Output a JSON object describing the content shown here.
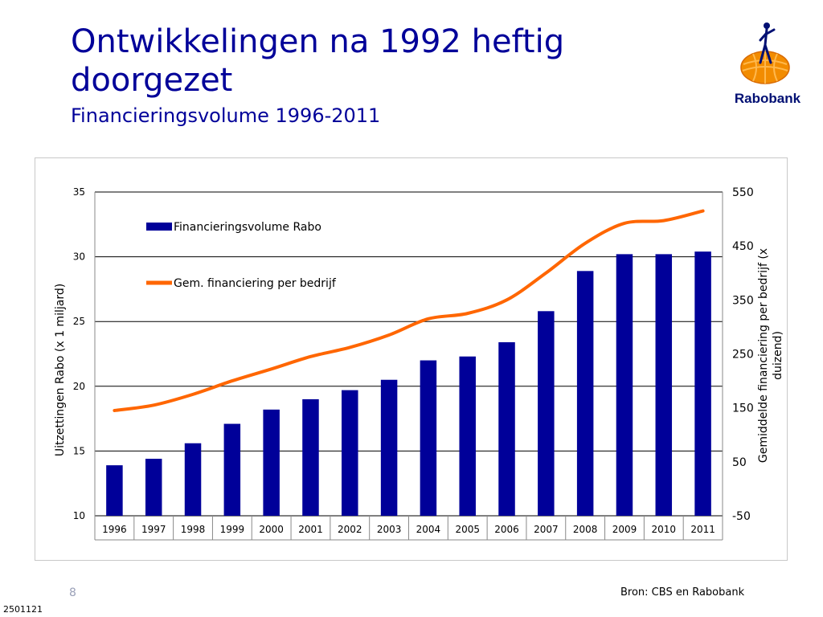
{
  "slide": {
    "title": "Ontwikkelingen na 1992 heftig doorgezet",
    "subtitle": "Financieringsvolume 1996-2011",
    "page_number": "8",
    "source": "Bron: CBS en Rabobank",
    "doc_id": "2501121"
  },
  "logo": {
    "text": "Rabobank",
    "icon": "rabobank-logo",
    "colors": {
      "orange": "#f28c00",
      "blue": "#000f73"
    }
  },
  "colors": {
    "bar": "#000099",
    "line": "#ff6600",
    "title": "#000099"
  },
  "chart_data": {
    "type": "bar",
    "categories": [
      "1996",
      "1997",
      "1998",
      "1999",
      "2000",
      "2001",
      "2002",
      "2003",
      "2004",
      "2005",
      "2006",
      "2007",
      "2008",
      "2009",
      "2010",
      "2011"
    ],
    "series": [
      {
        "name": "Financieringsvolume Rabo",
        "type": "bar",
        "axis": "left",
        "values": [
          13.9,
          14.4,
          15.6,
          17.1,
          18.2,
          19.0,
          19.7,
          20.5,
          22.0,
          22.3,
          23.4,
          25.8,
          28.9,
          30.2,
          30.2,
          30.4
        ]
      },
      {
        "name": "Gem. financiering per bedrijf",
        "type": "line",
        "axis": "right",
        "values": [
          145,
          155,
          175,
          200,
          222,
          245,
          262,
          285,
          315,
          325,
          350,
          400,
          455,
          492,
          497,
          515
        ]
      }
    ],
    "ylabel": "Uitzettingen Rabo (x 1 miljard)",
    "y2label": "Gemiddelde financiering per bedrijf (x duizend)",
    "ylim": [
      10,
      35
    ],
    "y2lim": [
      -50,
      550
    ],
    "yticks": [
      "10",
      "15",
      "20",
      "25",
      "30",
      "35"
    ],
    "y2ticks": [
      "-50",
      "50",
      "150",
      "250",
      "350",
      "450",
      "550"
    ],
    "legend": "top-left",
    "grid": true
  }
}
